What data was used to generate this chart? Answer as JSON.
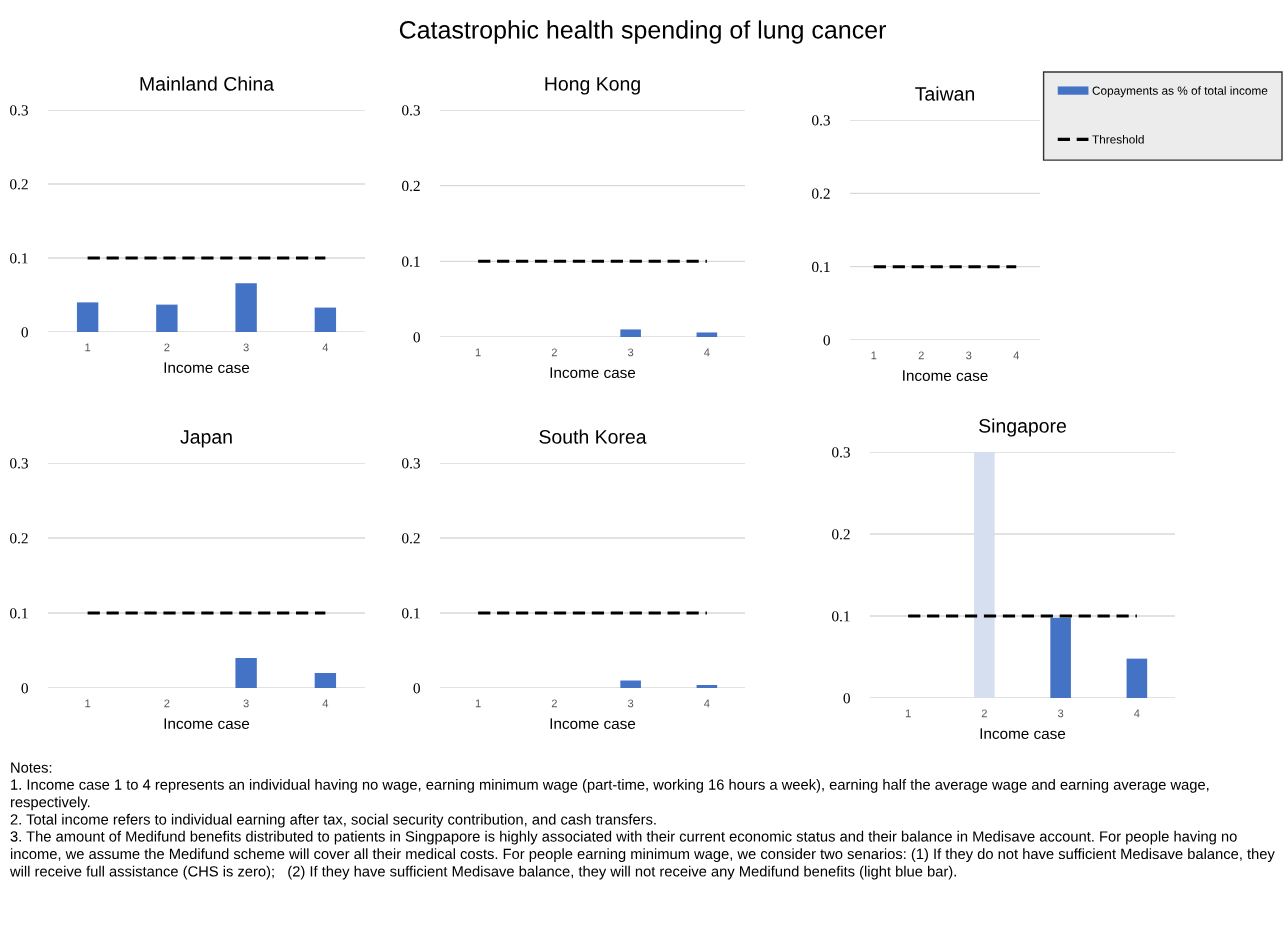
{
  "chart_data": [
    {
      "type": "other",
      "title": "Catastrophic health spending of lung cancer",
      "annotations": [
        "Notes:",
        "1. Income case 1 to 4 represents an individual having no wage, earning minimum wage (part-time, working 16 hours a week), earning half the average wage and earning average wage, respectively.",
        "2. Total income refers to individual earning after tax, social security contribution, and cash transfers.",
        "3. The amount of Medifund benefits distributed to patients in Singpapore is highly associated with their current economic status and their balance in Medisave account. For people having no income, we assume the Medifund scheme will cover all their medical costs. For people earning minimum wage, we consider two senarios: (1) If they do not have sufficient Medisave balance, they will receive full assistance (CHS is zero);   (2) If they have sufficient Medisave balance, they will not receive any Medifund benefits (light blue bar)."
      ]
    },
    {
      "type": "bar",
      "title": "Mainland China",
      "xlabel": "Income case",
      "categories": [
        "1",
        "2",
        "3",
        "4"
      ],
      "ylim": [
        0,
        0.3
      ],
      "yticks": [
        0,
        0.1,
        0.2,
        0.3
      ],
      "grid": "y",
      "series": [
        {
          "color": "#4472c4",
          "values": [
            0.04,
            0.037,
            0.066,
            0.033
          ]
        },
        {
          "type": "line",
          "color": "#000000",
          "line_style": "dashed",
          "values": [
            0.1,
            0.1,
            0.1,
            0.1
          ]
        }
      ]
    },
    {
      "type": "bar",
      "title": "Hong Kong",
      "xlabel": "Income case",
      "categories": [
        "1",
        "2",
        "3",
        "4"
      ],
      "ylim": [
        0,
        0.3
      ],
      "yticks": [
        0,
        0.1,
        0.2,
        0.3
      ],
      "grid": "y",
      "series": [
        {
          "color": "#4472c4",
          "values": [
            0,
            0,
            0.01,
            0.006
          ]
        },
        {
          "type": "line",
          "color": "#000000",
          "line_style": "dashed",
          "values": [
            0.1,
            0.1,
            0.1,
            0.1
          ]
        }
      ]
    },
    {
      "type": "bar",
      "title": "Taiwan",
      "xlabel": "Income case",
      "categories": [
        "1",
        "2",
        "3",
        "4"
      ],
      "ylim": [
        0,
        0.3
      ],
      "yticks": [
        0,
        0.1,
        0.2,
        0.3
      ],
      "grid": "y",
      "legend": "right",
      "series": [
        {
          "name": "Copayments as % of total income",
          "color": "#4472c4",
          "values": [
            0,
            0,
            0,
            0
          ]
        },
        {
          "name": "Threshold",
          "type": "line",
          "color": "#000000",
          "line_style": "dashed",
          "values": [
            0.1,
            0.1,
            0.1,
            0.1
          ]
        }
      ]
    },
    {
      "type": "bar",
      "title": "Japan",
      "xlabel": "Income case",
      "categories": [
        "1",
        "2",
        "3",
        "4"
      ],
      "ylim": [
        0,
        0.3
      ],
      "yticks": [
        0,
        0.1,
        0.2,
        0.3
      ],
      "grid": "y",
      "series": [
        {
          "color": "#4472c4",
          "values": [
            0,
            0,
            0.04,
            0.02
          ]
        },
        {
          "type": "line",
          "color": "#000000",
          "line_style": "dashed",
          "values": [
            0.1,
            0.1,
            0.1,
            0.1
          ]
        }
      ]
    },
    {
      "type": "bar",
      "title": "South Korea",
      "xlabel": "Income case",
      "categories": [
        "1",
        "2",
        "3",
        "4"
      ],
      "ylim": [
        0,
        0.3
      ],
      "yticks": [
        0,
        0.1,
        0.2,
        0.3
      ],
      "grid": "y",
      "series": [
        {
          "color": "#4472c4",
          "values": [
            0,
            0,
            0.01,
            0.004
          ]
        },
        {
          "type": "line",
          "color": "#000000",
          "line_style": "dashed",
          "values": [
            0.1,
            0.1,
            0.1,
            0.1
          ]
        }
      ]
    },
    {
      "type": "bar",
      "title": "Singapore",
      "xlabel": "Income case",
      "categories": [
        "1",
        "2",
        "3",
        "4"
      ],
      "ylim": [
        0,
        0.3
      ],
      "yticks": [
        0,
        0.1,
        0.2,
        0.3
      ],
      "grid": "y",
      "series": [
        {
          "colors": [
            "#4472c4",
            "#d6dff0",
            "#4472c4",
            "#4472c4"
          ],
          "values": [
            0,
            0.3,
            0.098,
            0.048
          ]
        },
        {
          "type": "line",
          "color": "#000000",
          "line_style": "dashed",
          "values": [
            0.1,
            0.1,
            0.1,
            0.1
          ]
        }
      ]
    }
  ]
}
